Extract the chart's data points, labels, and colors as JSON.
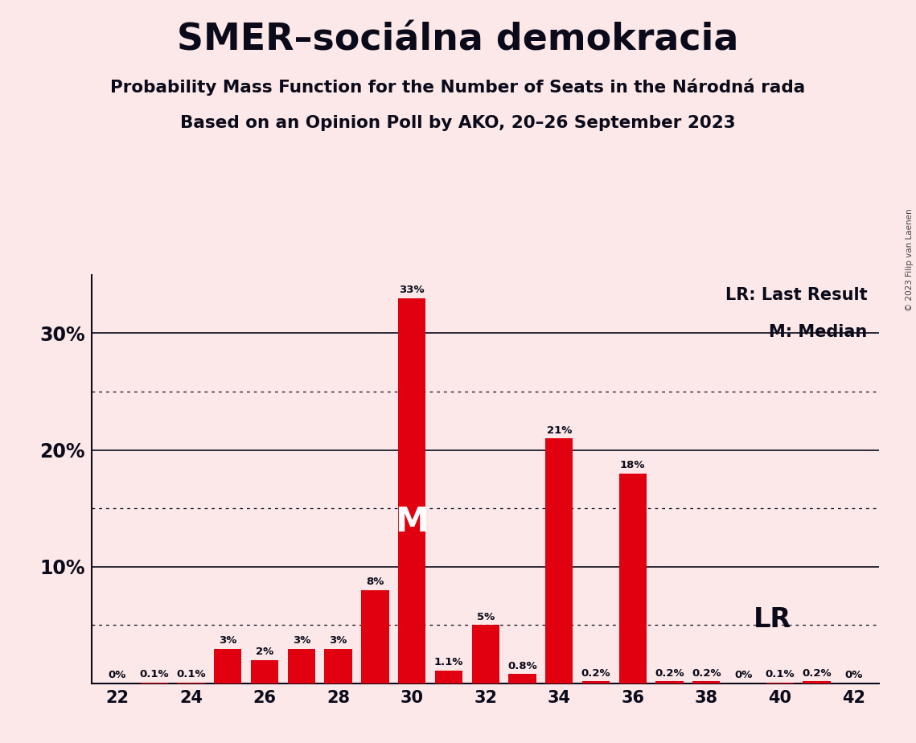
{
  "title": "SMER–sociálna demokracia",
  "subtitle1": "Probability Mass Function for the Number of Seats in the Národná rada",
  "subtitle2": "Based on an Opinion Poll by AKO, 20–26 September 2023",
  "copyright": "© 2023 Filip van Laenen",
  "seats": [
    22,
    23,
    24,
    25,
    26,
    27,
    28,
    29,
    30,
    31,
    32,
    33,
    34,
    35,
    36,
    37,
    38,
    39,
    40,
    41,
    42
  ],
  "probabilities": [
    0.0,
    0.1,
    0.1,
    3.0,
    2.0,
    3.0,
    3.0,
    8.0,
    33.0,
    1.1,
    5.0,
    0.8,
    21.0,
    0.2,
    18.0,
    0.2,
    0.2,
    0.0,
    0.1,
    0.2,
    0.0
  ],
  "bar_color": "#e00010",
  "background_color": "#fce8e8",
  "text_color": "#0a0a1a",
  "median_seat": 30,
  "lr_seat": 38,
  "lr_label": "LR",
  "median_label": "M",
  "ylim_max": 35,
  "solid_grid_ticks": [
    10,
    20,
    30
  ],
  "dotted_grid_ticks": [
    5,
    15,
    25
  ],
  "bar_width": 0.75,
  "xmin": 21.3,
  "xmax": 42.7
}
